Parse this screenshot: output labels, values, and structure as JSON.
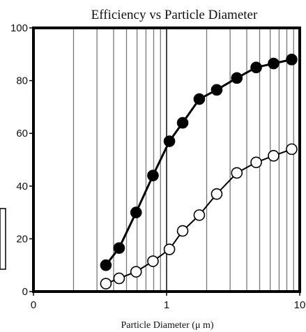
{
  "chart_data": {
    "type": "scatter",
    "title": "Efficiency vs Particle Diameter",
    "xlabel": "Particle Diameter (μ m)",
    "ylabel": "",
    "xscale": "log",
    "xlim_display": [
      0.1,
      10
    ],
    "ylim": [
      0,
      100
    ],
    "x_tick_labels": [
      "0",
      "1",
      "10"
    ],
    "y_ticks": [
      0,
      20,
      40,
      60,
      80,
      100
    ],
    "grid": "vertical log gridlines only",
    "legend": "none",
    "series": [
      {
        "marker": "filled-circle",
        "color": "#000000",
        "x": [
          0.35,
          0.44,
          0.59,
          0.79,
          1.05,
          1.32,
          1.76,
          2.38,
          3.37,
          4.71,
          6.36,
          8.7
        ],
        "y": [
          10,
          16.5,
          30,
          44,
          57,
          64,
          73,
          76.5,
          81,
          85,
          86.5,
          88
        ]
      },
      {
        "marker": "open-circle",
        "color": "#000000",
        "x": [
          0.35,
          0.44,
          0.59,
          0.79,
          1.05,
          1.32,
          1.76,
          2.38,
          3.37,
          4.71,
          6.36,
          8.7
        ],
        "y": [
          3,
          5,
          7.5,
          11.5,
          16,
          23,
          29,
          37,
          45,
          49,
          51.5,
          54
        ]
      }
    ]
  }
}
